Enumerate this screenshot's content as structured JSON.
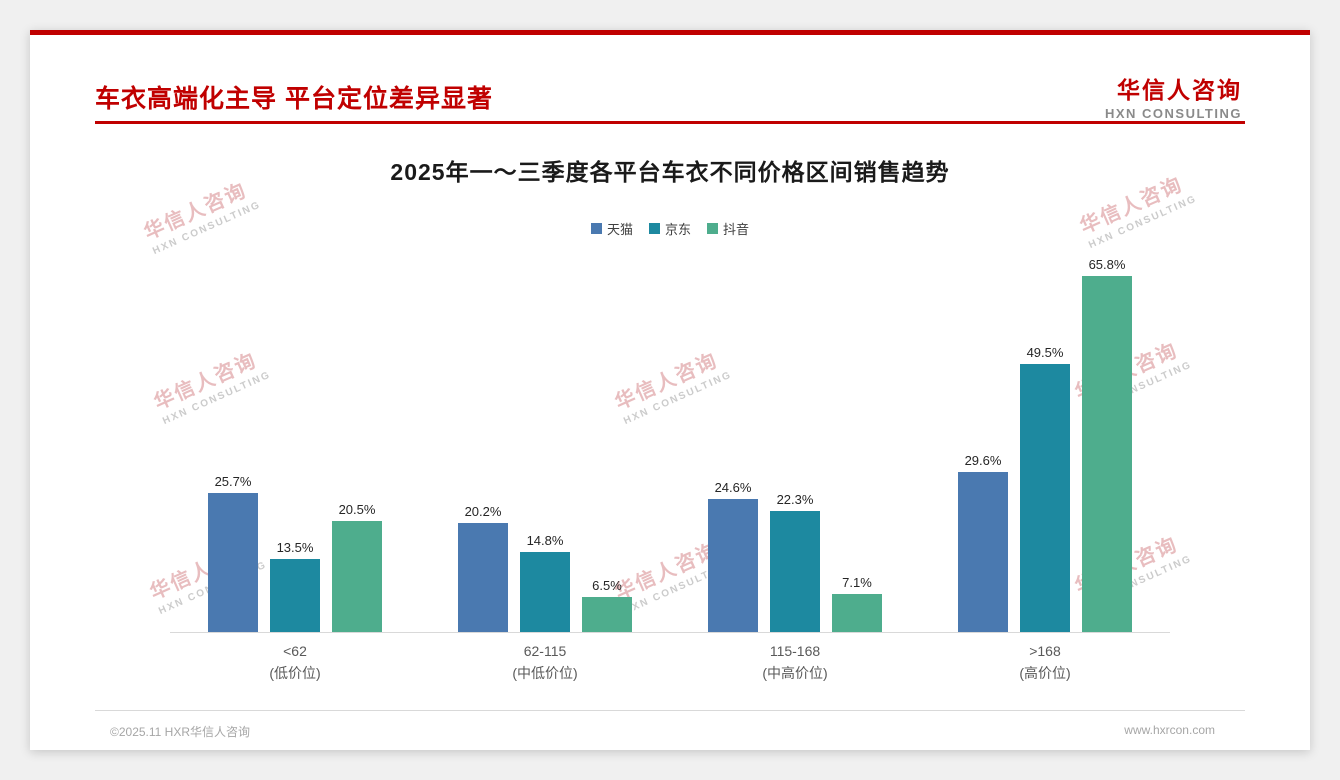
{
  "header": {
    "title": "车衣高端化主导 平台定位差异显著",
    "logo_cn": "华信人咨询",
    "logo_en": "HXN CONSULTING"
  },
  "watermark": {
    "cn": "华信人咨询",
    "en": "HXN CONSULTING"
  },
  "chart_data": {
    "type": "bar",
    "title": "2025年一～三季度各平台车衣不同价格区间销售趋势",
    "categories": [
      {
        "range": "<62",
        "tier": "(低价位)"
      },
      {
        "range": "62-115",
        "tier": "(中低价位)"
      },
      {
        "range": "115-168",
        "tier": "(中高价位)"
      },
      {
        "range": ">168",
        "tier": "(高价位)"
      }
    ],
    "series": [
      {
        "name": "天猫",
        "color": "#4a79b0",
        "values": [
          25.7,
          20.2,
          24.6,
          29.6
        ]
      },
      {
        "name": "京东",
        "color": "#1d89a0",
        "values": [
          13.5,
          14.8,
          22.3,
          49.5
        ]
      },
      {
        "name": "抖音",
        "color": "#4ead8d",
        "values": [
          20.5,
          6.5,
          7.1,
          65.8
        ]
      }
    ],
    "unit": "%",
    "ylim": [
      0,
      70
    ],
    "legend_position": "top",
    "grid": false
  },
  "footer": {
    "copyright": "©2025.11 HXR华信人咨询",
    "website": "www.hxrcon.com"
  },
  "colors": {
    "accent": "#c00000",
    "axis": "#d9d9d9"
  }
}
